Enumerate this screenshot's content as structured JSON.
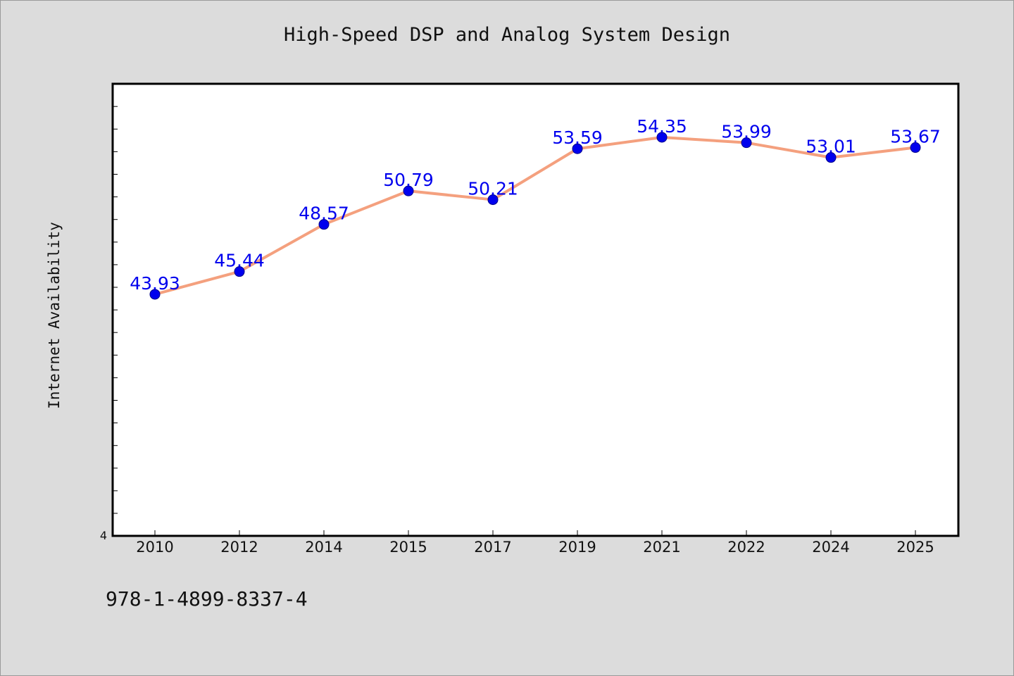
{
  "chart_data": {
    "type": "line",
    "title": "High-Speed DSP and Analog System Design",
    "xlabel": "",
    "ylabel": "Internet Availability",
    "categories": [
      "2010",
      "2012",
      "2014",
      "2015",
      "2017",
      "2019",
      "2021",
      "2022",
      "2024",
      "2025"
    ],
    "values": [
      43.93,
      45.44,
      48.57,
      50.79,
      50.21,
      53.59,
      54.35,
      53.99,
      53.01,
      53.67
    ],
    "value_labels": [
      "43.93",
      "45.44",
      "48.57",
      "50.79",
      "50.21",
      "53.59",
      "54.35",
      "53.99",
      "53.01",
      "53.67"
    ],
    "ylim": [
      27.9,
      57.9
    ],
    "y_tick_labels": [
      "4"
    ],
    "grid": false,
    "legend": "none",
    "colors": {
      "line": "#f4a07e",
      "marker": "#0000ee",
      "label": "#0000ee",
      "background": "#dcdcdc",
      "plot_area": "#ffffff"
    }
  },
  "footer": {
    "isbn": "978-1-4899-8337-4"
  }
}
